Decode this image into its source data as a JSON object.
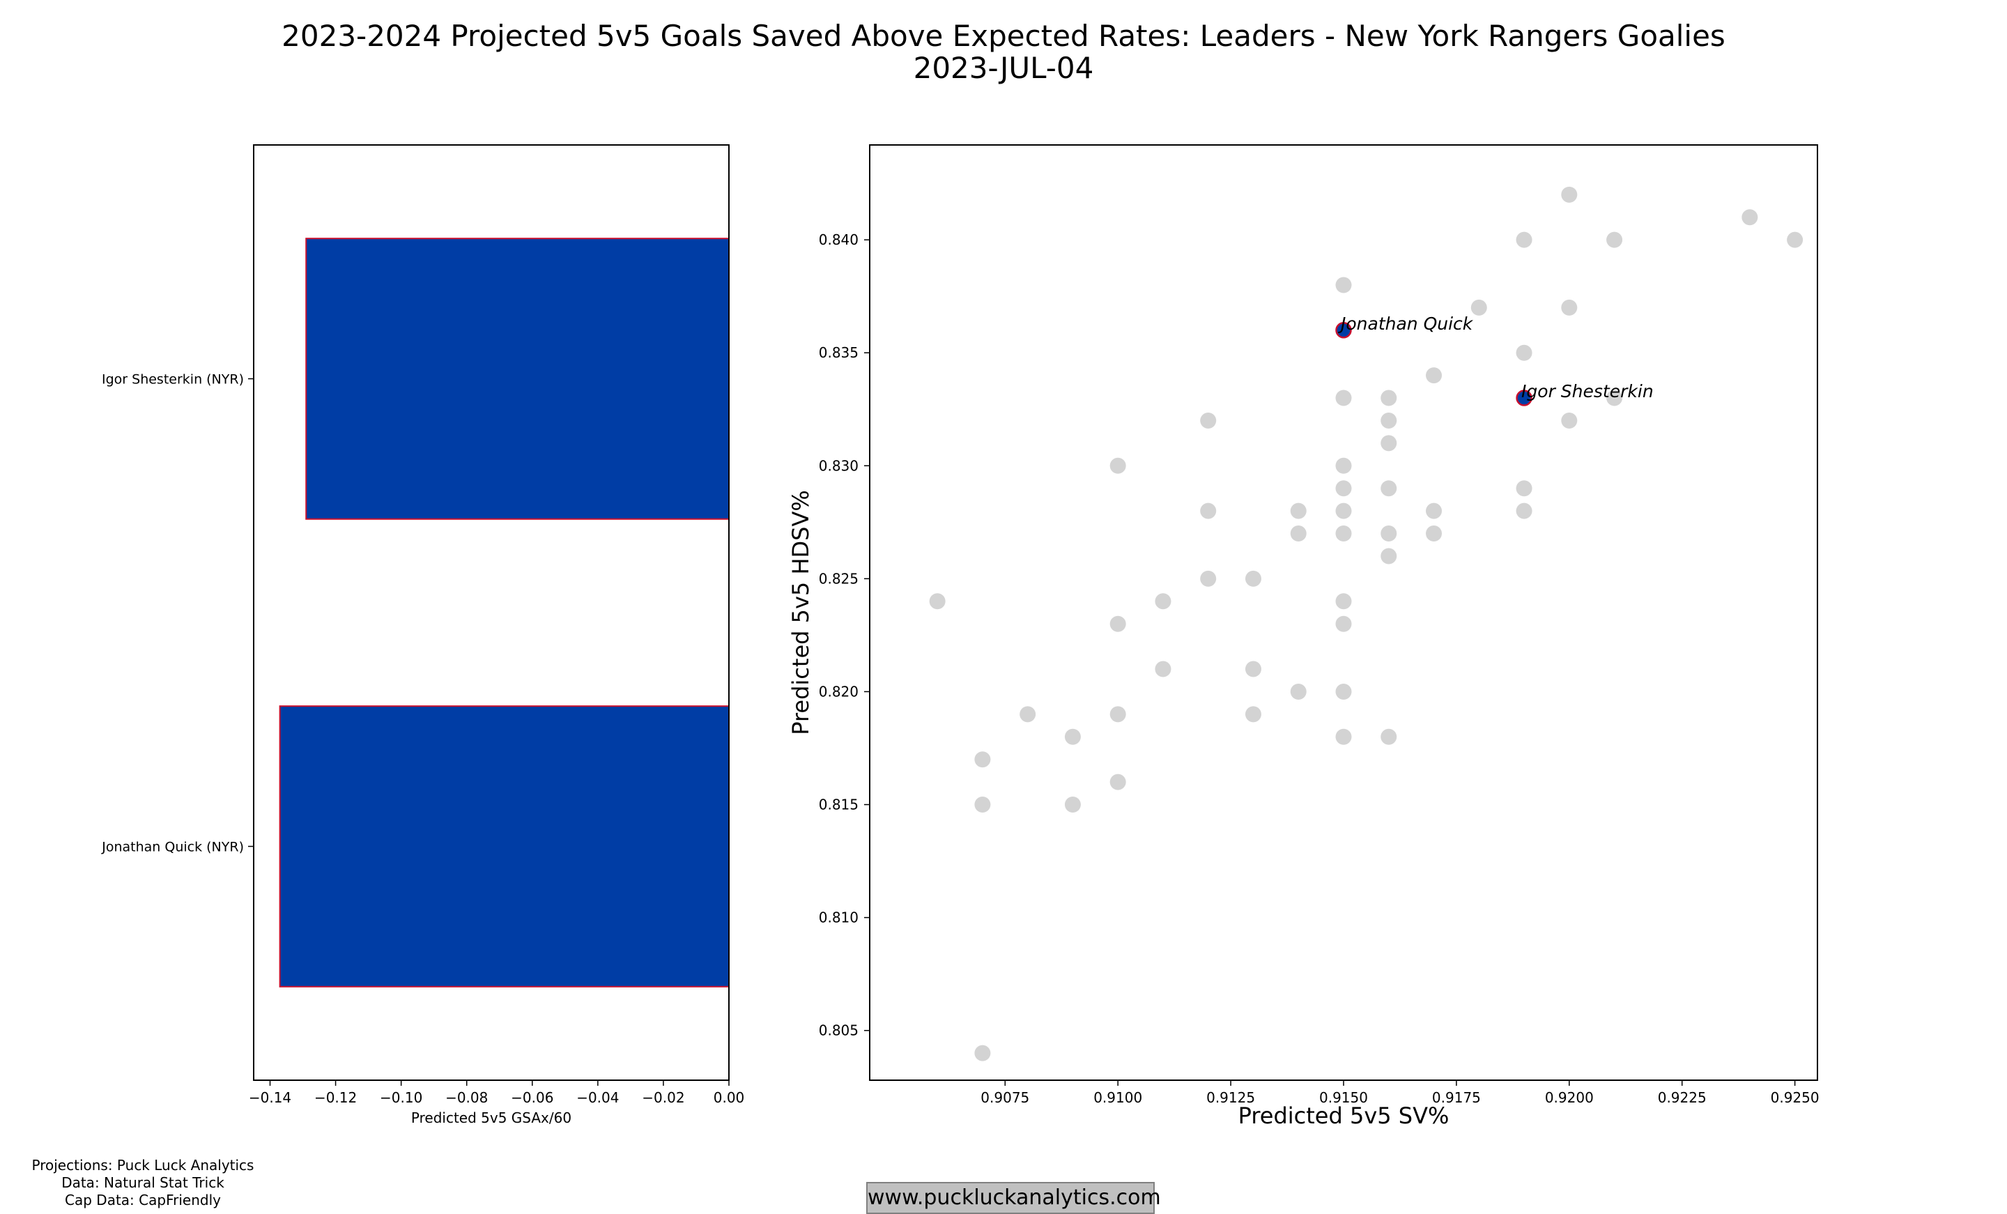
{
  "title_line1": "2023-2024 Projected 5v5 Goals Saved Above Expected Rates: Leaders - New York Rangers Goalies",
  "title_line2": "2023-JUL-04",
  "credits": {
    "line1": "Projections: Puck Luck Analytics",
    "line2": "Data: Natural Stat Trick",
    "line3": "Cap Data: CapFriendly"
  },
  "website": "www.puckluckanalytics.com",
  "chart_data": [
    {
      "type": "bar",
      "orientation": "horizontal",
      "categories": [
        "Igor Shesterkin (NYR)",
        "Jonathan Quick (NYR)"
      ],
      "values": [
        -0.129,
        -0.137
      ],
      "xlabel": "Predicted 5v5 GSAx/60",
      "xlim": [
        -0.145,
        0.0
      ],
      "xticks": [
        "−0.14",
        "−0.12",
        "−0.10",
        "−0.08",
        "−0.06",
        "−0.04",
        "−0.02",
        "0.00"
      ],
      "bar_color": "#003DA5",
      "edge_color": "#C8102E"
    },
    {
      "type": "scatter",
      "xlabel": "Predicted 5v5 SV%",
      "ylabel": "Predicted 5v5 HDSV%",
      "xlim": [
        0.9045,
        0.9255
      ],
      "ylim": [
        0.8028,
        0.8442
      ],
      "xticks": [
        "0.9075",
        "0.9100",
        "0.9125",
        "0.9150",
        "0.9175",
        "0.9200",
        "0.9225",
        "0.9250"
      ],
      "yticks": [
        "0.805",
        "0.810",
        "0.815",
        "0.820",
        "0.825",
        "0.830",
        "0.835",
        "0.840"
      ],
      "background_color": "#D3D3D3",
      "highlight_color": "#003DA5",
      "highlight_edge": "#C8102E",
      "points": [
        {
          "x": 0.906,
          "y": 0.824
        },
        {
          "x": 0.907,
          "y": 0.817
        },
        {
          "x": 0.907,
          "y": 0.815
        },
        {
          "x": 0.907,
          "y": 0.804
        },
        {
          "x": 0.908,
          "y": 0.819
        },
        {
          "x": 0.909,
          "y": 0.818
        },
        {
          "x": 0.909,
          "y": 0.815
        },
        {
          "x": 0.91,
          "y": 0.83
        },
        {
          "x": 0.91,
          "y": 0.823
        },
        {
          "x": 0.91,
          "y": 0.819
        },
        {
          "x": 0.91,
          "y": 0.816
        },
        {
          "x": 0.911,
          "y": 0.824
        },
        {
          "x": 0.911,
          "y": 0.821
        },
        {
          "x": 0.912,
          "y": 0.832
        },
        {
          "x": 0.912,
          "y": 0.828
        },
        {
          "x": 0.912,
          "y": 0.825
        },
        {
          "x": 0.913,
          "y": 0.825
        },
        {
          "x": 0.913,
          "y": 0.821
        },
        {
          "x": 0.913,
          "y": 0.819
        },
        {
          "x": 0.914,
          "y": 0.828
        },
        {
          "x": 0.914,
          "y": 0.827
        },
        {
          "x": 0.914,
          "y": 0.82
        },
        {
          "x": 0.915,
          "y": 0.838
        },
        {
          "x": 0.915,
          "y": 0.833
        },
        {
          "x": 0.915,
          "y": 0.83
        },
        {
          "x": 0.915,
          "y": 0.829
        },
        {
          "x": 0.915,
          "y": 0.828
        },
        {
          "x": 0.915,
          "y": 0.827
        },
        {
          "x": 0.915,
          "y": 0.824
        },
        {
          "x": 0.915,
          "y": 0.823
        },
        {
          "x": 0.915,
          "y": 0.82
        },
        {
          "x": 0.915,
          "y": 0.818
        },
        {
          "x": 0.916,
          "y": 0.833
        },
        {
          "x": 0.916,
          "y": 0.832
        },
        {
          "x": 0.916,
          "y": 0.831
        },
        {
          "x": 0.916,
          "y": 0.829
        },
        {
          "x": 0.916,
          "y": 0.827
        },
        {
          "x": 0.916,
          "y": 0.826
        },
        {
          "x": 0.916,
          "y": 0.818
        },
        {
          "x": 0.917,
          "y": 0.834
        },
        {
          "x": 0.917,
          "y": 0.828
        },
        {
          "x": 0.917,
          "y": 0.827
        },
        {
          "x": 0.918,
          "y": 0.837
        },
        {
          "x": 0.919,
          "y": 0.84
        },
        {
          "x": 0.919,
          "y": 0.835
        },
        {
          "x": 0.919,
          "y": 0.829
        },
        {
          "x": 0.919,
          "y": 0.828
        },
        {
          "x": 0.92,
          "y": 0.842
        },
        {
          "x": 0.92,
          "y": 0.837
        },
        {
          "x": 0.92,
          "y": 0.832
        },
        {
          "x": 0.921,
          "y": 0.84
        },
        {
          "x": 0.921,
          "y": 0.833
        },
        {
          "x": 0.924,
          "y": 0.841
        },
        {
          "x": 0.925,
          "y": 0.84
        }
      ],
      "highlighted": [
        {
          "name": "Jonathan Quick",
          "x": 0.915,
          "y": 0.836
        },
        {
          "name": "Igor Shesterkin",
          "x": 0.919,
          "y": 0.833
        }
      ]
    }
  ]
}
